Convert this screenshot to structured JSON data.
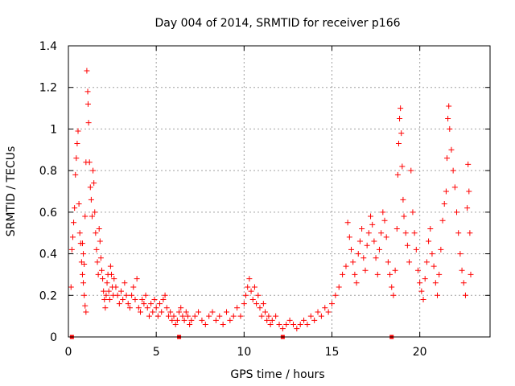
{
  "chart_data": {
    "type": "scatter",
    "title": "Day 004 of 2014, SRMTID for receiver p166",
    "xlabel": "GPS time / hours",
    "ylabel": "SRMTID / TECUs",
    "xlim": [
      0,
      24
    ],
    "ylim": [
      0,
      1.4
    ],
    "xticks": [
      0,
      5,
      10,
      15,
      20
    ],
    "xtick_labels": [
      "0",
      "5",
      "10",
      "15",
      "20"
    ],
    "yticks": [
      0,
      0.2,
      0.4,
      0.6,
      0.8,
      1.0,
      1.2,
      1.4
    ],
    "ytick_labels": [
      "0",
      "0.2",
      "0.4",
      "0.6",
      "0.8",
      "1",
      "1.2",
      "1.4"
    ],
    "grid": true,
    "marker": "+",
    "series_color": "#ff0000",
    "series": [
      {
        "name": "SRMTID",
        "points": [
          [
            0.15,
            0.24
          ],
          [
            0.2,
            0.42
          ],
          [
            0.25,
            0.48
          ],
          [
            0.3,
            0.55
          ],
          [
            0.35,
            0.62
          ],
          [
            0.4,
            0.78
          ],
          [
            0.45,
            0.86
          ],
          [
            0.5,
            0.93
          ],
          [
            0.55,
            0.99
          ],
          [
            0.6,
            0.64
          ],
          [
            0.65,
            0.5
          ],
          [
            0.7,
            0.45
          ],
          [
            0.75,
            0.36
          ],
          [
            0.8,
            0.3
          ],
          [
            0.85,
            0.26
          ],
          [
            0.9,
            0.2
          ],
          [
            0.95,
            0.15
          ],
          [
            1.0,
            0.12
          ],
          [
            0.8,
            0.45
          ],
          [
            0.85,
            0.4
          ],
          [
            0.9,
            0.35
          ],
          [
            0.95,
            0.58
          ],
          [
            1.0,
            0.84
          ],
          [
            1.05,
            1.28
          ],
          [
            1.1,
            1.18
          ],
          [
            1.12,
            1.12
          ],
          [
            1.15,
            1.03
          ],
          [
            1.2,
            0.84
          ],
          [
            1.25,
            0.72
          ],
          [
            1.3,
            0.66
          ],
          [
            1.35,
            0.58
          ],
          [
            1.4,
            0.8
          ],
          [
            1.45,
            0.74
          ],
          [
            1.5,
            0.6
          ],
          [
            1.55,
            0.5
          ],
          [
            1.6,
            0.42
          ],
          [
            1.65,
            0.36
          ],
          [
            1.7,
            0.3
          ],
          [
            1.75,
            0.52
          ],
          [
            1.8,
            0.46
          ],
          [
            1.85,
            0.38
          ],
          [
            1.9,
            0.32
          ],
          [
            1.95,
            0.28
          ],
          [
            2.0,
            0.22
          ],
          [
            2.05,
            0.18
          ],
          [
            2.1,
            0.14
          ],
          [
            2.15,
            0.2
          ],
          [
            2.2,
            0.26
          ],
          [
            2.25,
            0.3
          ],
          [
            2.3,
            0.22
          ],
          [
            2.35,
            0.18
          ],
          [
            2.4,
            0.34
          ],
          [
            2.45,
            0.3
          ],
          [
            2.5,
            0.24
          ],
          [
            2.55,
            0.2
          ],
          [
            2.6,
            0.28
          ],
          [
            2.7,
            0.24
          ],
          [
            2.8,
            0.2
          ],
          [
            2.9,
            0.16
          ],
          [
            3.0,
            0.22
          ],
          [
            3.1,
            0.18
          ],
          [
            3.2,
            0.26
          ],
          [
            3.3,
            0.2
          ],
          [
            3.4,
            0.16
          ],
          [
            3.5,
            0.14
          ],
          [
            3.6,
            0.2
          ],
          [
            3.7,
            0.24
          ],
          [
            3.8,
            0.18
          ],
          [
            3.9,
            0.28
          ],
          [
            4.0,
            0.14
          ],
          [
            4.1,
            0.12
          ],
          [
            4.2,
            0.18
          ],
          [
            4.3,
            0.16
          ],
          [
            4.4,
            0.2
          ],
          [
            4.5,
            0.14
          ],
          [
            4.6,
            0.1
          ],
          [
            4.7,
            0.16
          ],
          [
            4.8,
            0.12
          ],
          [
            4.9,
            0.18
          ],
          [
            5.0,
            0.14
          ],
          [
            5.1,
            0.1
          ],
          [
            5.2,
            0.16
          ],
          [
            5.3,
            0.12
          ],
          [
            5.4,
            0.18
          ],
          [
            5.5,
            0.2
          ],
          [
            5.6,
            0.14
          ],
          [
            5.7,
            0.1
          ],
          [
            5.8,
            0.12
          ],
          [
            5.9,
            0.08
          ],
          [
            6.0,
            0.1
          ],
          [
            6.1,
            0.06
          ],
          [
            6.2,
            0.08
          ],
          [
            6.3,
            0.12
          ],
          [
            6.4,
            0.14
          ],
          [
            6.5,
            0.1
          ],
          [
            6.6,
            0.08
          ],
          [
            6.7,
            0.12
          ],
          [
            6.8,
            0.1
          ],
          [
            6.9,
            0.06
          ],
          [
            7.0,
            0.08
          ],
          [
            7.2,
            0.1
          ],
          [
            7.4,
            0.12
          ],
          [
            7.6,
            0.08
          ],
          [
            7.8,
            0.06
          ],
          [
            8.0,
            0.1
          ],
          [
            8.2,
            0.12
          ],
          [
            8.4,
            0.08
          ],
          [
            8.6,
            0.1
          ],
          [
            8.8,
            0.06
          ],
          [
            9.0,
            0.12
          ],
          [
            9.2,
            0.08
          ],
          [
            9.4,
            0.1
          ],
          [
            9.6,
            0.14
          ],
          [
            9.8,
            0.1
          ],
          [
            10.0,
            0.16
          ],
          [
            10.1,
            0.2
          ],
          [
            10.2,
            0.24
          ],
          [
            10.3,
            0.28
          ],
          [
            10.4,
            0.22
          ],
          [
            10.5,
            0.18
          ],
          [
            10.6,
            0.24
          ],
          [
            10.7,
            0.16
          ],
          [
            10.8,
            0.2
          ],
          [
            10.9,
            0.14
          ],
          [
            11.0,
            0.1
          ],
          [
            11.1,
            0.16
          ],
          [
            11.2,
            0.12
          ],
          [
            11.3,
            0.08
          ],
          [
            11.4,
            0.1
          ],
          [
            11.5,
            0.06
          ],
          [
            11.6,
            0.08
          ],
          [
            11.8,
            0.1
          ],
          [
            12.0,
            0.06
          ],
          [
            12.2,
            0.04
          ],
          [
            12.4,
            0.06
          ],
          [
            12.6,
            0.08
          ],
          [
            12.8,
            0.06
          ],
          [
            13.0,
            0.04
          ],
          [
            13.2,
            0.06
          ],
          [
            13.4,
            0.08
          ],
          [
            13.6,
            0.06
          ],
          [
            13.8,
            0.1
          ],
          [
            14.0,
            0.08
          ],
          [
            14.2,
            0.12
          ],
          [
            14.4,
            0.1
          ],
          [
            14.6,
            0.14
          ],
          [
            14.8,
            0.12
          ],
          [
            15.0,
            0.16
          ],
          [
            15.2,
            0.2
          ],
          [
            15.4,
            0.24
          ],
          [
            15.6,
            0.3
          ],
          [
            15.8,
            0.34
          ],
          [
            15.9,
            0.55
          ],
          [
            16.0,
            0.48
          ],
          [
            16.1,
            0.42
          ],
          [
            16.2,
            0.36
          ],
          [
            16.3,
            0.3
          ],
          [
            16.4,
            0.26
          ],
          [
            16.5,
            0.4
          ],
          [
            16.6,
            0.46
          ],
          [
            16.7,
            0.52
          ],
          [
            16.8,
            0.38
          ],
          [
            16.9,
            0.32
          ],
          [
            17.0,
            0.44
          ],
          [
            17.1,
            0.5
          ],
          [
            17.2,
            0.58
          ],
          [
            17.3,
            0.54
          ],
          [
            17.4,
            0.46
          ],
          [
            17.5,
            0.38
          ],
          [
            17.6,
            0.3
          ],
          [
            17.7,
            0.42
          ],
          [
            17.8,
            0.5
          ],
          [
            17.9,
            0.6
          ],
          [
            18.0,
            0.56
          ],
          [
            18.1,
            0.48
          ],
          [
            18.2,
            0.36
          ],
          [
            18.3,
            0.3
          ],
          [
            18.4,
            0.24
          ],
          [
            18.5,
            0.2
          ],
          [
            18.6,
            0.32
          ],
          [
            18.7,
            0.52
          ],
          [
            18.75,
            0.78
          ],
          [
            18.8,
            0.93
          ],
          [
            18.85,
            1.05
          ],
          [
            18.9,
            1.1
          ],
          [
            18.95,
            0.98
          ],
          [
            19.0,
            0.82
          ],
          [
            19.05,
            0.66
          ],
          [
            19.1,
            0.58
          ],
          [
            19.2,
            0.5
          ],
          [
            19.3,
            0.44
          ],
          [
            19.4,
            0.36
          ],
          [
            19.5,
            0.8
          ],
          [
            19.6,
            0.6
          ],
          [
            19.7,
            0.5
          ],
          [
            19.8,
            0.42
          ],
          [
            19.9,
            0.32
          ],
          [
            20.0,
            0.26
          ],
          [
            20.1,
            0.22
          ],
          [
            20.2,
            0.18
          ],
          [
            20.3,
            0.28
          ],
          [
            20.4,
            0.36
          ],
          [
            20.5,
            0.46
          ],
          [
            20.6,
            0.52
          ],
          [
            20.7,
            0.4
          ],
          [
            20.8,
            0.34
          ],
          [
            20.9,
            0.26
          ],
          [
            21.0,
            0.2
          ],
          [
            21.1,
            0.3
          ],
          [
            21.2,
            0.42
          ],
          [
            21.3,
            0.56
          ],
          [
            21.4,
            0.64
          ],
          [
            21.5,
            0.7
          ],
          [
            21.55,
            0.86
          ],
          [
            21.6,
            1.05
          ],
          [
            21.65,
            1.11
          ],
          [
            21.7,
            1.0
          ],
          [
            21.8,
            0.9
          ],
          [
            21.9,
            0.8
          ],
          [
            22.0,
            0.72
          ],
          [
            22.1,
            0.6
          ],
          [
            22.2,
            0.5
          ],
          [
            22.3,
            0.4
          ],
          [
            22.4,
            0.32
          ],
          [
            22.5,
            0.26
          ],
          [
            22.6,
            0.2
          ],
          [
            22.7,
            0.62
          ],
          [
            22.75,
            0.83
          ],
          [
            22.8,
            0.7
          ],
          [
            22.85,
            0.5
          ],
          [
            22.9,
            0.3
          ]
        ]
      }
    ],
    "data_gaps_x": [
      0.2,
      6.3,
      12.2,
      18.4
    ]
  }
}
